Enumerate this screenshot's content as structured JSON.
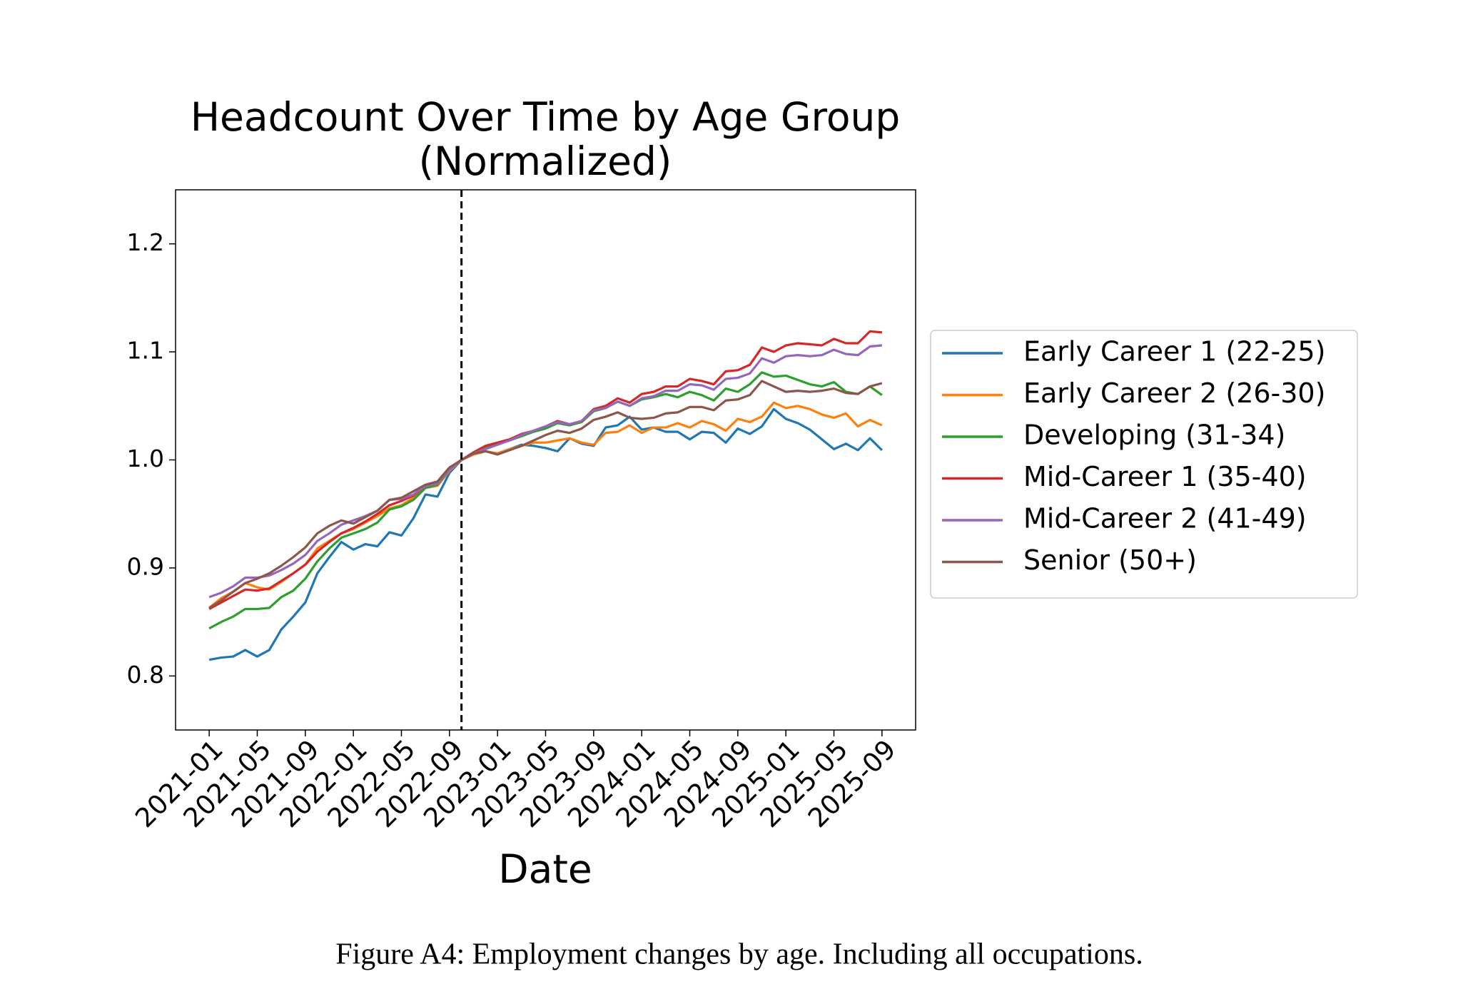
{
  "chart_data": {
    "type": "line",
    "title": [
      "Headcount Over Time by Age Group",
      "(Normalized)"
    ],
    "xlabel": "Date",
    "caption": "Figure A4: Employment changes by age. Including all occupations.",
    "x": [
      "2021-01",
      "2021-02",
      "2021-03",
      "2021-04",
      "2021-05",
      "2021-06",
      "2021-07",
      "2021-08",
      "2021-09",
      "2021-10",
      "2021-11",
      "2021-12",
      "2022-01",
      "2022-02",
      "2022-03",
      "2022-04",
      "2022-05",
      "2022-06",
      "2022-07",
      "2022-08",
      "2022-09",
      "2022-10",
      "2022-11",
      "2022-12",
      "2023-01",
      "2023-02",
      "2023-03",
      "2023-04",
      "2023-05",
      "2023-06",
      "2023-07",
      "2023-08",
      "2023-09",
      "2023-10",
      "2023-11",
      "2023-12",
      "2024-01",
      "2024-02",
      "2024-03",
      "2024-04",
      "2024-05",
      "2024-06",
      "2024-07",
      "2024-08",
      "2024-09",
      "2024-10",
      "2024-11",
      "2024-12",
      "2025-01",
      "2025-02",
      "2025-03",
      "2025-04",
      "2025-05",
      "2025-06",
      "2025-07",
      "2025-08",
      "2025-09"
    ],
    "xticks": [
      "2021-01",
      "2021-05",
      "2021-09",
      "2022-01",
      "2022-05",
      "2022-09",
      "2023-01",
      "2023-05",
      "2023-09",
      "2024-01",
      "2024-05",
      "2024-09",
      "2025-01",
      "2025-05",
      "2025-09"
    ],
    "vline": "2022-10",
    "ylim": [
      0.75,
      1.25
    ],
    "yticks": [
      0.8,
      0.9,
      {
        "value": 1,
        "label": "1.0"
      },
      1.1,
      1.2
    ],
    "legend_loc": "center left outside",
    "series": [
      {
        "name": "Early Career 1 (22-25)",
        "color": "#1f77b4",
        "values": [
          0.815,
          0.817,
          0.818,
          0.824,
          0.818,
          0.824,
          0.843,
          0.855,
          0.868,
          0.895,
          0.91,
          0.924,
          0.917,
          0.922,
          0.92,
          0.933,
          0.93,
          0.946,
          0.968,
          0.966,
          0.988,
          1.0,
          1.005,
          1.008,
          1.006,
          1.01,
          1.014,
          1.013,
          1.011,
          1.008,
          1.02,
          1.015,
          1.013,
          1.03,
          1.032,
          1.04,
          1.028,
          1.03,
          1.026,
          1.026,
          1.019,
          1.026,
          1.025,
          1.016,
          1.029,
          1.024,
          1.031,
          1.047,
          1.038,
          1.034,
          1.028,
          1.019,
          1.01,
          1.015,
          1.009,
          1.02,
          1.009
        ]
      },
      {
        "name": "Early Career 2 (26-30)",
        "color": "#ff7f0e",
        "values": [
          0.863,
          0.872,
          0.878,
          0.886,
          0.882,
          0.88,
          0.887,
          0.895,
          0.903,
          0.918,
          0.925,
          0.932,
          0.936,
          0.942,
          0.948,
          0.955,
          0.958,
          0.965,
          0.974,
          0.976,
          0.99,
          1.0,
          1.005,
          1.008,
          1.006,
          1.01,
          1.013,
          1.016,
          1.016,
          1.018,
          1.02,
          1.016,
          1.014,
          1.025,
          1.026,
          1.032,
          1.025,
          1.03,
          1.03,
          1.034,
          1.03,
          1.036,
          1.033,
          1.027,
          1.038,
          1.035,
          1.04,
          1.053,
          1.048,
          1.05,
          1.047,
          1.042,
          1.039,
          1.043,
          1.031,
          1.037,
          1.032
        ]
      },
      {
        "name": "Developing (31-34)",
        "color": "#2ca02c",
        "values": [
          0.844,
          0.85,
          0.855,
          0.862,
          0.862,
          0.863,
          0.873,
          0.879,
          0.89,
          0.906,
          0.918,
          0.928,
          0.932,
          0.936,
          0.942,
          0.954,
          0.957,
          0.963,
          0.974,
          0.977,
          0.991,
          1.0,
          1.006,
          1.012,
          1.015,
          1.018,
          1.022,
          1.026,
          1.029,
          1.034,
          1.032,
          1.035,
          1.045,
          1.048,
          1.054,
          1.05,
          1.056,
          1.058,
          1.061,
          1.058,
          1.063,
          1.06,
          1.055,
          1.066,
          1.063,
          1.07,
          1.081,
          1.077,
          1.078,
          1.074,
          1.07,
          1.068,
          1.072,
          1.063,
          1.061,
          1.068,
          1.06
        ]
      },
      {
        "name": "Mid-Career 1 (35-40)",
        "color": "#d62728",
        "values": [
          0.862,
          0.868,
          0.874,
          0.88,
          0.879,
          0.881,
          0.888,
          0.895,
          0.903,
          0.915,
          0.924,
          0.932,
          0.937,
          0.943,
          0.95,
          0.958,
          0.962,
          0.967,
          0.976,
          0.979,
          0.992,
          1.0,
          1.007,
          1.013,
          1.016,
          1.019,
          1.024,
          1.027,
          1.031,
          1.036,
          1.033,
          1.036,
          1.047,
          1.05,
          1.057,
          1.053,
          1.061,
          1.063,
          1.068,
          1.068,
          1.075,
          1.073,
          1.07,
          1.082,
          1.083,
          1.088,
          1.104,
          1.1,
          1.106,
          1.108,
          1.107,
          1.106,
          1.112,
          1.108,
          1.108,
          1.119,
          1.118
        ]
      },
      {
        "name": "Mid-Career 2 (41-49)",
        "color": "#9467bd",
        "values": [
          0.873,
          0.877,
          0.883,
          0.891,
          0.891,
          0.893,
          0.898,
          0.904,
          0.912,
          0.925,
          0.932,
          0.94,
          0.944,
          0.948,
          0.953,
          0.963,
          0.964,
          0.968,
          0.976,
          0.978,
          0.991,
          1.0,
          1.006,
          1.01,
          1.014,
          1.018,
          1.023,
          1.027,
          1.031,
          1.035,
          1.033,
          1.036,
          1.046,
          1.048,
          1.054,
          1.05,
          1.057,
          1.059,
          1.064,
          1.064,
          1.07,
          1.069,
          1.065,
          1.075,
          1.076,
          1.08,
          1.094,
          1.09,
          1.096,
          1.097,
          1.096,
          1.097,
          1.102,
          1.098,
          1.097,
          1.105,
          1.106
        ]
      },
      {
        "name": "Senior (50+)",
        "color": "#8c564b",
        "values": [
          0.863,
          0.87,
          0.878,
          0.886,
          0.89,
          0.895,
          0.902,
          0.91,
          0.919,
          0.932,
          0.939,
          0.944,
          0.941,
          0.947,
          0.953,
          0.963,
          0.965,
          0.971,
          0.977,
          0.98,
          0.993,
          1.0,
          1.006,
          1.008,
          1.005,
          1.009,
          1.013,
          1.018,
          1.023,
          1.027,
          1.025,
          1.029,
          1.037,
          1.04,
          1.044,
          1.039,
          1.038,
          1.039,
          1.043,
          1.044,
          1.049,
          1.049,
          1.046,
          1.055,
          1.056,
          1.06,
          1.073,
          1.068,
          1.063,
          1.064,
          1.063,
          1.064,
          1.066,
          1.062,
          1.061,
          1.068,
          1.071
        ]
      }
    ]
  }
}
